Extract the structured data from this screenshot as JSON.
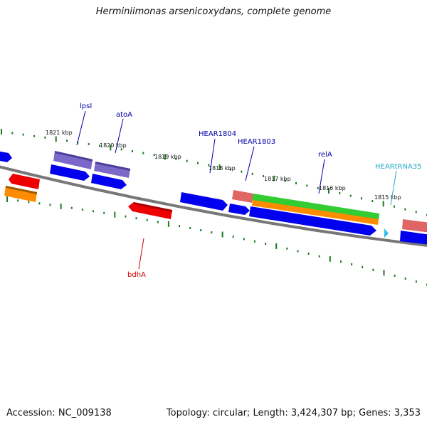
{
  "title": "Herminiimonas arsenicoxydans, complete genome",
  "footer": {
    "accession": "Accession: NC_009138",
    "summary": "Topology: circular; Length: 3,424,307 bp; Genes: 3,353"
  },
  "scale_labels": [
    "1821 kbp",
    "1820 kbp",
    "1819 kbp",
    "1818 kbp",
    "1817 kbp",
    "1816 kbp",
    "1815 kbp"
  ],
  "gene_labels": {
    "lpsI": "lpsI",
    "atoA": "atoA",
    "hear1804": "HEAR1804",
    "hear1803": "HEAR1803",
    "relA": "relA",
    "hearTRNA35": "HEARtRNA35",
    "bdhA": "bdhA"
  },
  "colors": {
    "backbone": "#777777",
    "tick": "#1f7a1f",
    "cds": "#0000ee",
    "gene": "#ff8c00",
    "rrna_like": "#e06666",
    "misc_red": "#ee0000",
    "purple": "#7b68c8",
    "green": "#33cc33",
    "trna": "#33bbee",
    "label_blue": "#0000aa",
    "label_red": "#cc0000",
    "label_cyan": "#22aacc"
  }
}
